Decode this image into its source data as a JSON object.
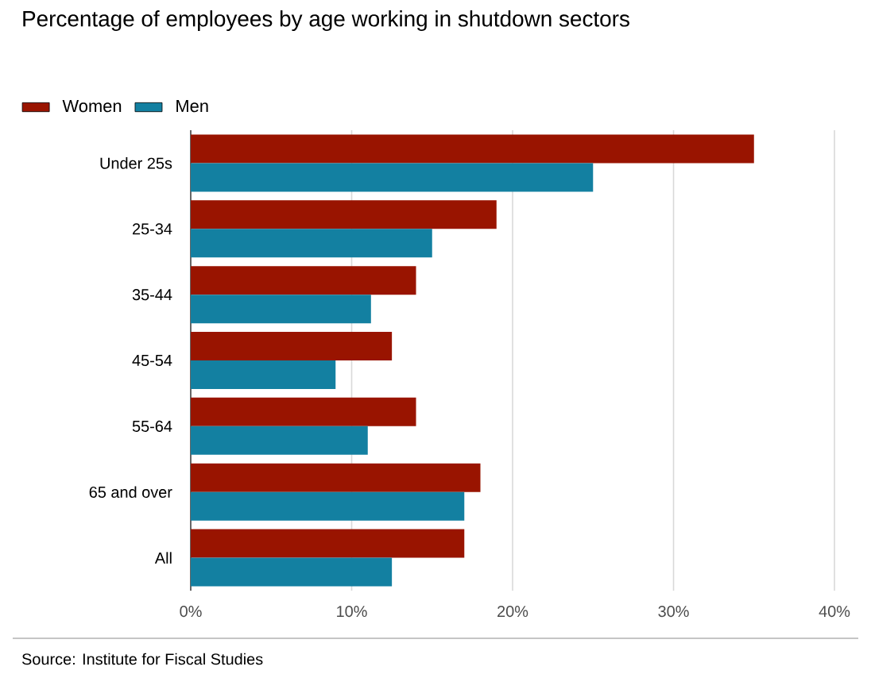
{
  "chart_data": {
    "type": "bar",
    "orientation": "horizontal",
    "title": "Percentage of employees by age working in shutdown sectors",
    "categories": [
      "Under 25s",
      "25-34",
      "35-44",
      "45-54",
      "55-64",
      "65 and over",
      "All"
    ],
    "series": [
      {
        "name": "Women",
        "color": "#991400",
        "values": [
          35,
          19,
          14,
          12.5,
          14,
          18,
          17
        ]
      },
      {
        "name": "Men",
        "color": "#1380a1",
        "values": [
          25,
          15,
          11.2,
          9,
          11,
          17,
          12.5
        ]
      }
    ],
    "xlim": [
      0,
      40
    ],
    "xticks": [
      {
        "value": 0,
        "label": "0%"
      },
      {
        "value": 10,
        "label": "10%"
      },
      {
        "value": 20,
        "label": "20%"
      },
      {
        "value": 30,
        "label": "30%"
      },
      {
        "value": 40,
        "label": "40%"
      }
    ],
    "grid": "x",
    "legend": "top left",
    "annotations": [
      "Source: Institute for Fiscal Studies"
    ]
  }
}
